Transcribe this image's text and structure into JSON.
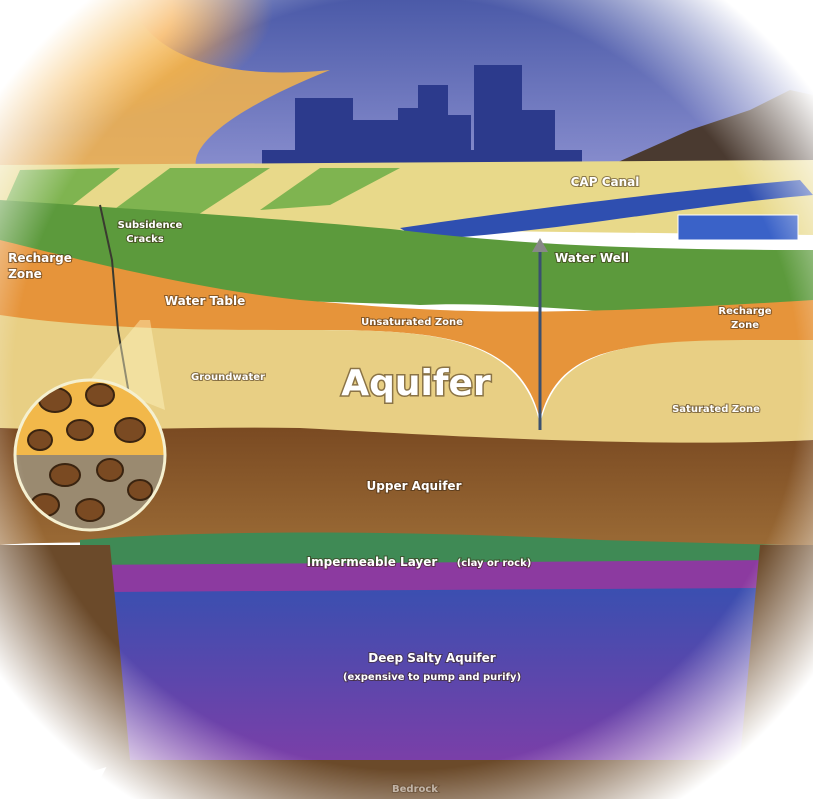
{
  "labels": {
    "cap_canal": "CAP Canal",
    "subsidence_cracks": [
      "Subsidence",
      "Cracks"
    ],
    "recharge_zone_left": [
      "Recharge",
      "Zone"
    ],
    "water_well": "Water Well",
    "water_table": "Water Table",
    "unsaturated_zone": "Unsaturated Zone",
    "recharge_zone_right": [
      "Recharge",
      "Zone"
    ],
    "groundwater": "Groundwater",
    "aquifer": "Aquifer",
    "saturated_zone": "Saturated Zone",
    "upper_aquifer": "Upper Aquifer",
    "impermeable_layer": "Impermeable Layer",
    "impermeable_note": "(clay or rock)",
    "deep_salty_aquifer": "Deep Salty Aquifer",
    "deep_salty_note": "(expensive to pump and purify)",
    "bedrock": "Bedrock"
  }
}
